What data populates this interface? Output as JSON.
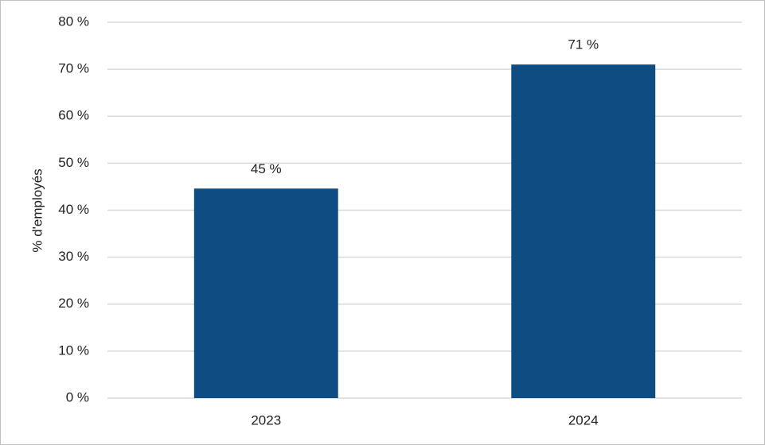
{
  "chart_data": {
    "type": "bar",
    "y_label": "% d'employés",
    "categories": [
      "2023",
      "2024"
    ],
    "values": [
      44.6,
      71
    ],
    "value_labels": [
      "45 %",
      "71 %"
    ],
    "color": "#0f4c81",
    "ylim": [
      0,
      80
    ],
    "yticks": [
      {
        "value": 0,
        "label": "0 %"
      },
      {
        "value": 10,
        "label": "10 %"
      },
      {
        "value": 20,
        "label": "20 %"
      },
      {
        "value": 30,
        "label": "30 %"
      },
      {
        "value": 40,
        "label": "40 %"
      },
      {
        "value": 50,
        "label": "50 %"
      },
      {
        "value": 60,
        "label": "60 %"
      },
      {
        "value": 70,
        "label": "70 %"
      },
      {
        "value": 80,
        "label": "80 %"
      }
    ],
    "grid": true
  }
}
